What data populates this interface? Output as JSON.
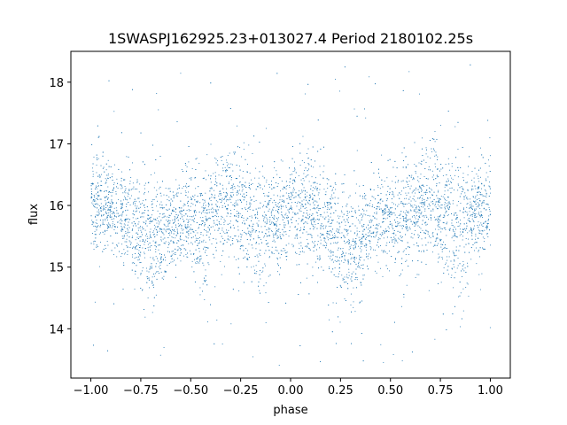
{
  "chart_data": {
    "type": "scatter",
    "title": "1SWASPJ162925.23+013027.4 Period 2180102.25s",
    "xlabel": "phase",
    "ylabel": "flux",
    "xlim": [
      -1.1,
      1.1
    ],
    "ylim": [
      13.2,
      18.5
    ],
    "xticks": [
      -1.0,
      -0.75,
      -0.5,
      -0.25,
      0.0,
      0.25,
      0.5,
      0.75,
      1.0
    ],
    "xtick_labels": [
      "−1.00",
      "−0.75",
      "−0.50",
      "−0.25",
      "0.00",
      "0.25",
      "0.50",
      "0.75",
      "1.00"
    ],
    "yticks": [
      14,
      15,
      16,
      17,
      18
    ],
    "ytick_labels": [
      "14",
      "15",
      "16",
      "17",
      "18"
    ],
    "grid": false,
    "color": "#1f77b4",
    "series": [
      {
        "phase_range": [
          -1.0,
          1.0
        ],
        "flux_median": 15.9,
        "flux_core_range": [
          15.0,
          16.6
        ],
        "flux_full_range": [
          13.4,
          18.3
        ],
        "dense_envelope": [
          {
            "x": -1.0,
            "low": 15.1,
            "high": 16.9
          },
          {
            "x": -0.9,
            "low": 15.2,
            "high": 16.8
          },
          {
            "x": -0.8,
            "low": 14.8,
            "high": 16.7
          },
          {
            "x": -0.7,
            "low": 14.4,
            "high": 16.5
          },
          {
            "x": -0.6,
            "low": 14.9,
            "high": 16.4
          },
          {
            "x": -0.5,
            "low": 15.0,
            "high": 16.6
          },
          {
            "x": -0.45,
            "low": 14.4,
            "high": 16.7
          },
          {
            "x": -0.4,
            "low": 15.0,
            "high": 16.8
          },
          {
            "x": -0.3,
            "low": 15.1,
            "high": 17.1
          },
          {
            "x": -0.2,
            "low": 14.6,
            "high": 16.9
          },
          {
            "x": -0.15,
            "low": 14.3,
            "high": 16.8
          },
          {
            "x": -0.1,
            "low": 15.0,
            "high": 16.6
          },
          {
            "x": 0.0,
            "low": 15.1,
            "high": 16.7
          },
          {
            "x": 0.05,
            "low": 14.8,
            "high": 16.8
          },
          {
            "x": 0.1,
            "low": 15.0,
            "high": 16.9
          },
          {
            "x": 0.2,
            "low": 14.7,
            "high": 16.5
          },
          {
            "x": 0.3,
            "low": 14.3,
            "high": 16.4
          },
          {
            "x": 0.4,
            "low": 14.9,
            "high": 16.5
          },
          {
            "x": 0.5,
            "low": 15.0,
            "high": 16.7
          },
          {
            "x": 0.55,
            "low": 14.4,
            "high": 16.8
          },
          {
            "x": 0.6,
            "low": 15.1,
            "high": 16.8
          },
          {
            "x": 0.7,
            "low": 15.0,
            "high": 17.2
          },
          {
            "x": 0.8,
            "low": 14.5,
            "high": 16.9
          },
          {
            "x": 0.85,
            "low": 14.4,
            "high": 17.0
          },
          {
            "x": 0.9,
            "low": 15.0,
            "high": 16.6
          },
          {
            "x": 1.0,
            "low": 15.2,
            "high": 16.9
          }
        ]
      }
    ]
  }
}
